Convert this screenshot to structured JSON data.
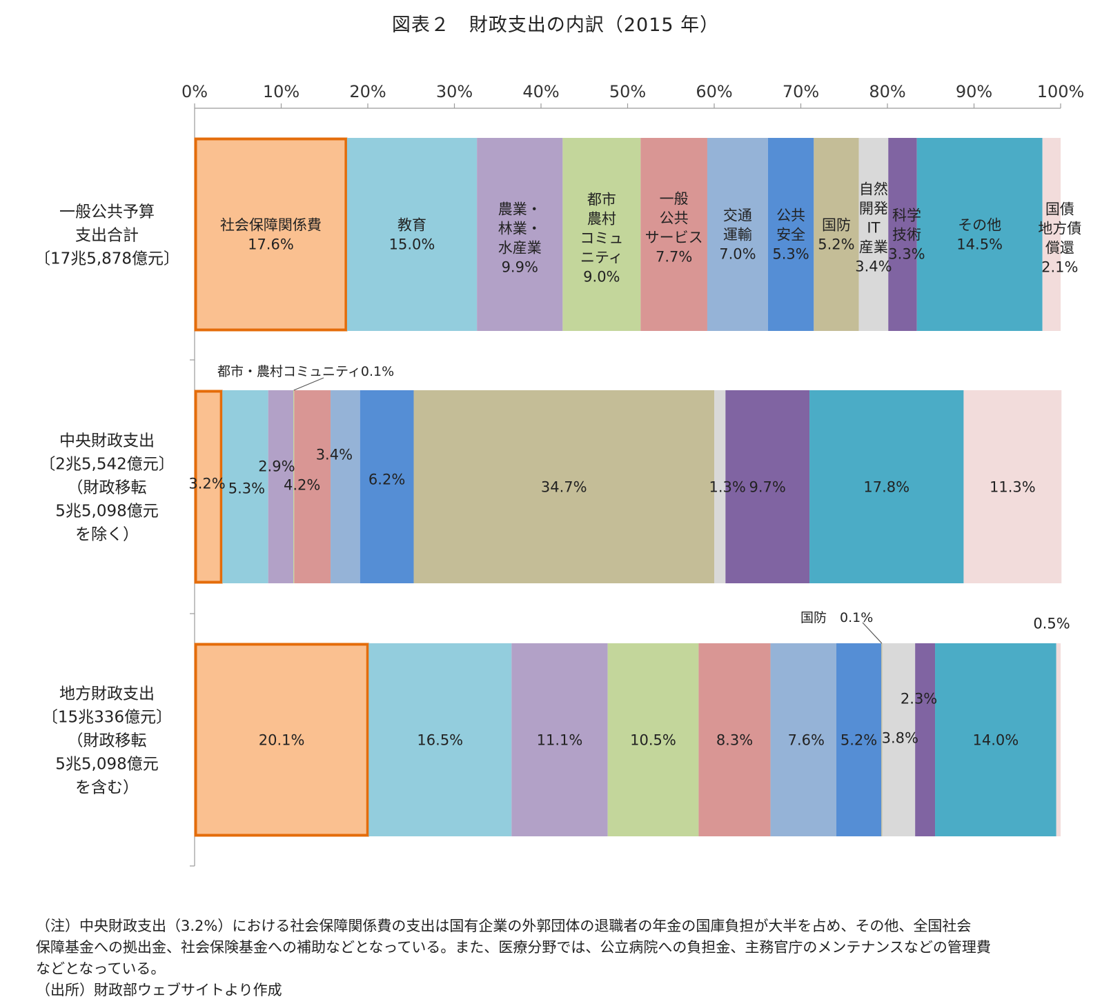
{
  "chart_data": {
    "type": "bar",
    "stacked": "100%",
    "orientation": "horizontal",
    "title": "図表２　財政支出の内訳（2015 年）",
    "x_axis": {
      "range": [
        0,
        100
      ],
      "ticks": [
        "0%",
        "10%",
        "20%",
        "30%",
        "40%",
        "50%",
        "60%",
        "70%",
        "80%",
        "90%",
        "100%"
      ]
    },
    "categories": [
      {
        "label_lines": [
          "一般公共予算",
          "支出合計",
          "〔17兆5,878億元〕"
        ]
      },
      {
        "label_lines": [
          "中央財政支出",
          "〔2兆5,542億元〕",
          "（財政移転",
          "5兆5,098億元",
          "を除く）"
        ]
      },
      {
        "label_lines": [
          "地方財政支出",
          "〔15兆336億元〕",
          "（財政移転",
          "5兆5,098億元",
          "を含む）"
        ]
      }
    ],
    "series": [
      {
        "name": "社会保障関係費",
        "color": "#FAC090",
        "values": [
          17.6,
          3.2,
          20.1
        ]
      },
      {
        "name": "教育",
        "color": "#93CDDD",
        "values": [
          15.0,
          5.3,
          16.5
        ]
      },
      {
        "name": "農業・林業・水産業",
        "color": "#B2A1C7",
        "values": [
          9.9,
          2.9,
          11.1
        ]
      },
      {
        "name": "都市農村コミュニティ",
        "color": "#C3D69B",
        "values": [
          9.0,
          0.1,
          10.5
        ]
      },
      {
        "name": "一般公共サービス",
        "color": "#D99694",
        "values": [
          7.7,
          4.2,
          8.3
        ]
      },
      {
        "name": "交通運輸",
        "color": "#95B3D7",
        "values": [
          7.0,
          3.4,
          7.6
        ]
      },
      {
        "name": "公共安全",
        "color": "#558ED5",
        "values": [
          5.3,
          6.2,
          5.2
        ]
      },
      {
        "name": "国防",
        "color": "#C4BD97",
        "values": [
          5.2,
          34.7,
          0.1
        ]
      },
      {
        "name": "自然開発IT産業",
        "color": "#D9D9D9",
        "values": [
          3.4,
          1.3,
          3.8
        ]
      },
      {
        "name": "科学技術",
        "color": "#8064A2",
        "values": [
          3.3,
          9.7,
          2.3
        ]
      },
      {
        "name": "その他",
        "color": "#4BACC6",
        "values": [
          14.5,
          17.8,
          14.0
        ]
      },
      {
        "name": "国債地方債償還",
        "color": "#F2DCDB",
        "values": [
          2.1,
          11.3,
          0.5
        ]
      }
    ],
    "highlight": {
      "series": "社会保障関係費",
      "border_color": "#E46C0A"
    },
    "data_labels": [
      [
        [
          "社会保障関係費",
          "17.6%"
        ],
        [
          "教育",
          "15.0%"
        ],
        [
          "農業・",
          "林業・",
          "水産業",
          "9.9%"
        ],
        [
          "都市",
          "農村",
          "コミュ",
          "ニティ",
          "9.0%"
        ],
        [
          "一般",
          "公共",
          "サービス",
          "7.7%"
        ],
        [
          "交通",
          "運輸",
          "7.0%"
        ],
        [
          "公共",
          "安全",
          "5.3%"
        ],
        [
          "国防",
          "5.2%"
        ],
        [
          "自然",
          "開発",
          "IT",
          "産業",
          "3.4%"
        ],
        [
          "科学",
          "技術",
          "3.3%"
        ],
        [
          "その他",
          "14.5%"
        ],
        [
          "国債",
          "地方債",
          "償還",
          "2.1%"
        ]
      ],
      [
        [
          "3.2%"
        ],
        [
          "5.3%"
        ],
        [
          "2.9%"
        ],
        [
          "都市・農村コミュニティ0.1%"
        ],
        [
          "4.2%"
        ],
        [
          "3.4%"
        ],
        [
          "6.2%"
        ],
        [
          "34.7%"
        ],
        [
          "1.3%"
        ],
        [
          "9.7%"
        ],
        [
          "17.8%"
        ],
        [
          "11.3%"
        ]
      ],
      [
        [
          "20.1%"
        ],
        [
          "16.5%"
        ],
        [
          "11.1%"
        ],
        [
          "10.5%"
        ],
        [
          "8.3%"
        ],
        [
          "7.6%"
        ],
        [
          "5.2%"
        ],
        [
          "国防　0.1%"
        ],
        [
          "3.8%"
        ],
        [
          "2.3%"
        ],
        [
          "14.0%"
        ],
        [
          "0.5%"
        ]
      ]
    ]
  },
  "notes": [
    "（注）中央財政支出（3.2%）における社会保障関係費の支出は国有企業の外郭団体の退職者の年金の国庫負担が大半を占め、その他、全国社会",
    "保障基金への拠出金、社会保険基金への補助などとなっている。また、医療分野では、公立病院への負担金、主務官庁のメンテナンスなどの管理費",
    "などとなっている。",
    "（出所）財政部ウェブサイトより作成"
  ]
}
